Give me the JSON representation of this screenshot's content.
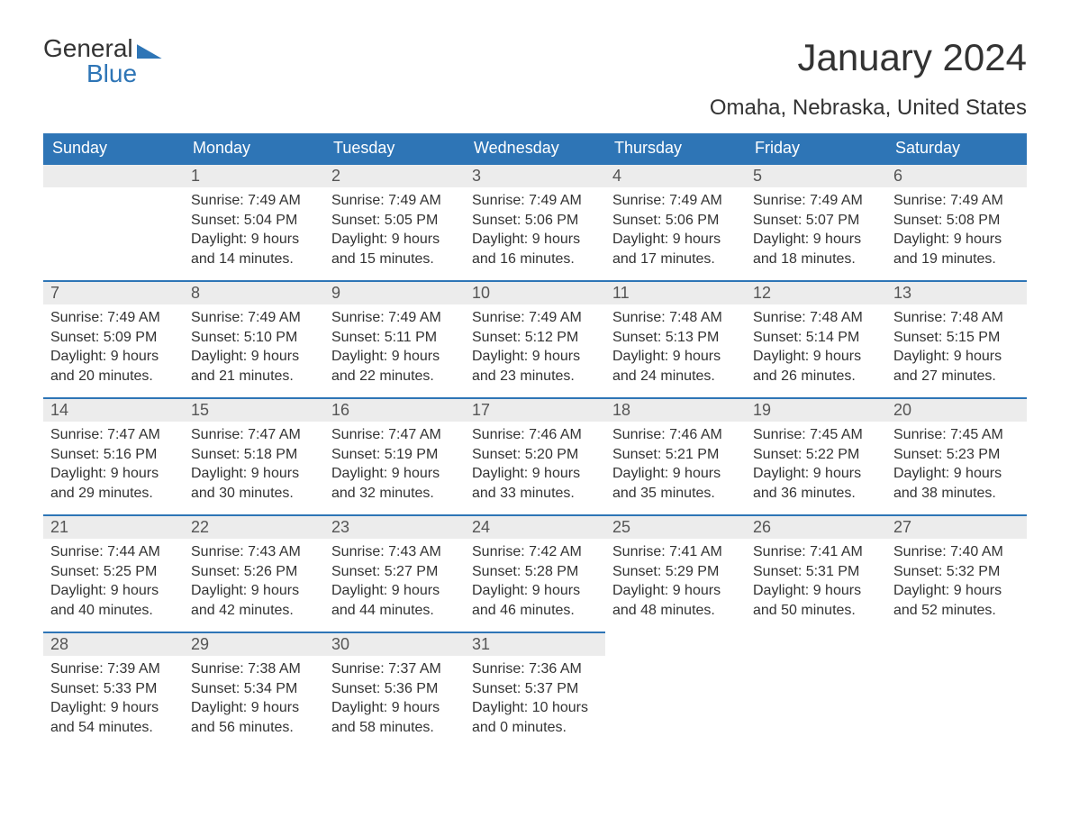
{
  "logo": {
    "word1": "General",
    "word2": "Blue"
  },
  "title": "January 2024",
  "location": "Omaha, Nebraska, United States",
  "colors": {
    "accent": "#2e75b6",
    "header_row_bg": "#ececec",
    "text": "#333333",
    "bg": "#ffffff"
  },
  "days_of_week": [
    "Sunday",
    "Monday",
    "Tuesday",
    "Wednesday",
    "Thursday",
    "Friday",
    "Saturday"
  ],
  "weeks": [
    [
      {
        "n": "",
        "sunrise": "",
        "sunset": "",
        "daylight": ""
      },
      {
        "n": "1",
        "sunrise": "Sunrise: 7:49 AM",
        "sunset": "Sunset: 5:04 PM",
        "daylight": "Daylight: 9 hours and 14 minutes."
      },
      {
        "n": "2",
        "sunrise": "Sunrise: 7:49 AM",
        "sunset": "Sunset: 5:05 PM",
        "daylight": "Daylight: 9 hours and 15 minutes."
      },
      {
        "n": "3",
        "sunrise": "Sunrise: 7:49 AM",
        "sunset": "Sunset: 5:06 PM",
        "daylight": "Daylight: 9 hours and 16 minutes."
      },
      {
        "n": "4",
        "sunrise": "Sunrise: 7:49 AM",
        "sunset": "Sunset: 5:06 PM",
        "daylight": "Daylight: 9 hours and 17 minutes."
      },
      {
        "n": "5",
        "sunrise": "Sunrise: 7:49 AM",
        "sunset": "Sunset: 5:07 PM",
        "daylight": "Daylight: 9 hours and 18 minutes."
      },
      {
        "n": "6",
        "sunrise": "Sunrise: 7:49 AM",
        "sunset": "Sunset: 5:08 PM",
        "daylight": "Daylight: 9 hours and 19 minutes."
      }
    ],
    [
      {
        "n": "7",
        "sunrise": "Sunrise: 7:49 AM",
        "sunset": "Sunset: 5:09 PM",
        "daylight": "Daylight: 9 hours and 20 minutes."
      },
      {
        "n": "8",
        "sunrise": "Sunrise: 7:49 AM",
        "sunset": "Sunset: 5:10 PM",
        "daylight": "Daylight: 9 hours and 21 minutes."
      },
      {
        "n": "9",
        "sunrise": "Sunrise: 7:49 AM",
        "sunset": "Sunset: 5:11 PM",
        "daylight": "Daylight: 9 hours and 22 minutes."
      },
      {
        "n": "10",
        "sunrise": "Sunrise: 7:49 AM",
        "sunset": "Sunset: 5:12 PM",
        "daylight": "Daylight: 9 hours and 23 minutes."
      },
      {
        "n": "11",
        "sunrise": "Sunrise: 7:48 AM",
        "sunset": "Sunset: 5:13 PM",
        "daylight": "Daylight: 9 hours and 24 minutes."
      },
      {
        "n": "12",
        "sunrise": "Sunrise: 7:48 AM",
        "sunset": "Sunset: 5:14 PM",
        "daylight": "Daylight: 9 hours and 26 minutes."
      },
      {
        "n": "13",
        "sunrise": "Sunrise: 7:48 AM",
        "sunset": "Sunset: 5:15 PM",
        "daylight": "Daylight: 9 hours and 27 minutes."
      }
    ],
    [
      {
        "n": "14",
        "sunrise": "Sunrise: 7:47 AM",
        "sunset": "Sunset: 5:16 PM",
        "daylight": "Daylight: 9 hours and 29 minutes."
      },
      {
        "n": "15",
        "sunrise": "Sunrise: 7:47 AM",
        "sunset": "Sunset: 5:18 PM",
        "daylight": "Daylight: 9 hours and 30 minutes."
      },
      {
        "n": "16",
        "sunrise": "Sunrise: 7:47 AM",
        "sunset": "Sunset: 5:19 PM",
        "daylight": "Daylight: 9 hours and 32 minutes."
      },
      {
        "n": "17",
        "sunrise": "Sunrise: 7:46 AM",
        "sunset": "Sunset: 5:20 PM",
        "daylight": "Daylight: 9 hours and 33 minutes."
      },
      {
        "n": "18",
        "sunrise": "Sunrise: 7:46 AM",
        "sunset": "Sunset: 5:21 PM",
        "daylight": "Daylight: 9 hours and 35 minutes."
      },
      {
        "n": "19",
        "sunrise": "Sunrise: 7:45 AM",
        "sunset": "Sunset: 5:22 PM",
        "daylight": "Daylight: 9 hours and 36 minutes."
      },
      {
        "n": "20",
        "sunrise": "Sunrise: 7:45 AM",
        "sunset": "Sunset: 5:23 PM",
        "daylight": "Daylight: 9 hours and 38 minutes."
      }
    ],
    [
      {
        "n": "21",
        "sunrise": "Sunrise: 7:44 AM",
        "sunset": "Sunset: 5:25 PM",
        "daylight": "Daylight: 9 hours and 40 minutes."
      },
      {
        "n": "22",
        "sunrise": "Sunrise: 7:43 AM",
        "sunset": "Sunset: 5:26 PM",
        "daylight": "Daylight: 9 hours and 42 minutes."
      },
      {
        "n": "23",
        "sunrise": "Sunrise: 7:43 AM",
        "sunset": "Sunset: 5:27 PM",
        "daylight": "Daylight: 9 hours and 44 minutes."
      },
      {
        "n": "24",
        "sunrise": "Sunrise: 7:42 AM",
        "sunset": "Sunset: 5:28 PM",
        "daylight": "Daylight: 9 hours and 46 minutes."
      },
      {
        "n": "25",
        "sunrise": "Sunrise: 7:41 AM",
        "sunset": "Sunset: 5:29 PM",
        "daylight": "Daylight: 9 hours and 48 minutes."
      },
      {
        "n": "26",
        "sunrise": "Sunrise: 7:41 AM",
        "sunset": "Sunset: 5:31 PM",
        "daylight": "Daylight: 9 hours and 50 minutes."
      },
      {
        "n": "27",
        "sunrise": "Sunrise: 7:40 AM",
        "sunset": "Sunset: 5:32 PM",
        "daylight": "Daylight: 9 hours and 52 minutes."
      }
    ],
    [
      {
        "n": "28",
        "sunrise": "Sunrise: 7:39 AM",
        "sunset": "Sunset: 5:33 PM",
        "daylight": "Daylight: 9 hours and 54 minutes."
      },
      {
        "n": "29",
        "sunrise": "Sunrise: 7:38 AM",
        "sunset": "Sunset: 5:34 PM",
        "daylight": "Daylight: 9 hours and 56 minutes."
      },
      {
        "n": "30",
        "sunrise": "Sunrise: 7:37 AM",
        "sunset": "Sunset: 5:36 PM",
        "daylight": "Daylight: 9 hours and 58 minutes."
      },
      {
        "n": "31",
        "sunrise": "Sunrise: 7:36 AM",
        "sunset": "Sunset: 5:37 PM",
        "daylight": "Daylight: 10 hours and 0 minutes."
      },
      {
        "n": "",
        "sunrise": "",
        "sunset": "",
        "daylight": ""
      },
      {
        "n": "",
        "sunrise": "",
        "sunset": "",
        "daylight": ""
      },
      {
        "n": "",
        "sunrise": "",
        "sunset": "",
        "daylight": ""
      }
    ]
  ]
}
